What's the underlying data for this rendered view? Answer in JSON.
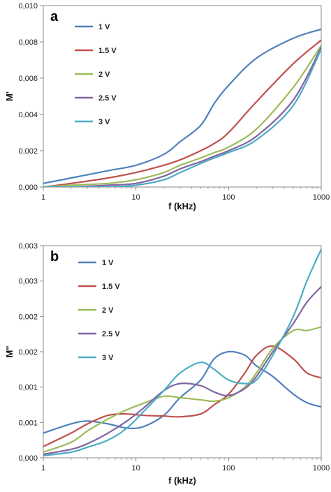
{
  "chart_data": [
    {
      "type": "line",
      "panel_label": "a",
      "xlabel": "f (kHz)",
      "ylabel": "M'",
      "x_scale": "log",
      "xlim": [
        1,
        1000
      ],
      "ylim": [
        0,
        0.01
      ],
      "x_ticks": [
        "1",
        "10",
        "100",
        "1000"
      ],
      "y_ticks": [
        "0,000",
        "0,002",
        "0,004",
        "0,006",
        "0,008",
        "0,010"
      ],
      "grid": false,
      "legend": "upper-left",
      "series": [
        {
          "name": "1 V",
          "color": "#4f81bd",
          "x": [
            1,
            2,
            5,
            10,
            20,
            30,
            50,
            70,
            100,
            200,
            500,
            1000
          ],
          "y": [
            0.0002,
            0.0005,
            0.0009,
            0.0012,
            0.0018,
            0.0025,
            0.0034,
            0.0046,
            0.0056,
            0.0071,
            0.0082,
            0.0087
          ]
        },
        {
          "name": "1.5 V",
          "color": "#c0504d",
          "x": [
            1,
            2,
            5,
            10,
            20,
            30,
            50,
            70,
            100,
            200,
            500,
            1000
          ],
          "y": [
            0.0,
            0.0002,
            0.0005,
            0.0008,
            0.0012,
            0.0015,
            0.002,
            0.0024,
            0.003,
            0.0047,
            0.0068,
            0.0081
          ]
        },
        {
          "name": "2 V",
          "color": "#9bbb59",
          "x": [
            1,
            2,
            5,
            10,
            20,
            30,
            50,
            70,
            100,
            200,
            500,
            1000
          ],
          "y": [
            0.0,
            0.0001,
            0.0002,
            0.0004,
            0.0008,
            0.0012,
            0.0016,
            0.0019,
            0.0022,
            0.0032,
            0.0055,
            0.0078
          ]
        },
        {
          "name": "2.5 V",
          "color": "#8064a2",
          "x": [
            1,
            2,
            5,
            10,
            20,
            30,
            50,
            70,
            100,
            200,
            500,
            1000
          ],
          "y": [
            0.0,
            0.0,
            0.0001,
            0.0002,
            0.0006,
            0.001,
            0.0014,
            0.0017,
            0.002,
            0.0028,
            0.0048,
            0.0077
          ]
        },
        {
          "name": "3 V",
          "color": "#4bacc6",
          "x": [
            1,
            2,
            5,
            10,
            20,
            30,
            50,
            70,
            100,
            200,
            500,
            1000
          ],
          "y": [
            0.0,
            0.0,
            0.0,
            0.0001,
            0.0004,
            0.0008,
            0.0013,
            0.0016,
            0.0019,
            0.0026,
            0.0045,
            0.0076
          ]
        }
      ]
    },
    {
      "type": "line",
      "panel_label": "b",
      "xlabel": "f (kHz)",
      "ylabel": "M''",
      "x_scale": "log",
      "xlim": [
        1,
        1000
      ],
      "ylim": [
        0,
        0.003
      ],
      "x_ticks": [
        "1",
        "10",
        "100",
        "1000"
      ],
      "y_ticks": [
        "0,000",
        "0,001",
        "0,001",
        "0,002",
        "0,002",
        "0,003",
        "0,003"
      ],
      "grid": false,
      "legend": "upper-left",
      "series": [
        {
          "name": "1 V",
          "color": "#4f81bd",
          "x": [
            1,
            2,
            3,
            5,
            8,
            12,
            20,
            30,
            50,
            70,
            100,
            150,
            200,
            300,
            500,
            700,
            1000
          ],
          "y": [
            0.00035,
            0.00048,
            0.00052,
            0.00048,
            0.00042,
            0.00044,
            0.0006,
            0.00085,
            0.0011,
            0.0014,
            0.0015,
            0.00145,
            0.0013,
            0.00115,
            0.0009,
            0.00078,
            0.00072
          ]
        },
        {
          "name": "1.5 V",
          "color": "#c0504d",
          "x": [
            1,
            2,
            3,
            5,
            8,
            12,
            20,
            30,
            50,
            70,
            100,
            150,
            200,
            300,
            500,
            700,
            1000
          ],
          "y": [
            0.00016,
            0.00035,
            0.00048,
            0.0006,
            0.00062,
            0.0006,
            0.00059,
            0.00058,
            0.00062,
            0.00075,
            0.0009,
            0.0012,
            0.00145,
            0.00158,
            0.0014,
            0.0012,
            0.00113
          ]
        },
        {
          "name": "2 V",
          "color": "#9bbb59",
          "x": [
            1,
            2,
            3,
            5,
            8,
            12,
            20,
            30,
            50,
            70,
            100,
            150,
            200,
            300,
            500,
            700,
            1000
          ],
          "y": [
            8e-05,
            0.00022,
            0.00038,
            0.00055,
            0.00068,
            0.00077,
            0.00087,
            0.00085,
            0.00082,
            0.0008,
            0.00085,
            0.001,
            0.0012,
            0.00155,
            0.0018,
            0.0018,
            0.00185
          ]
        },
        {
          "name": "2.5 V",
          "color": "#8064a2",
          "x": [
            1,
            2,
            3,
            5,
            8,
            12,
            20,
            30,
            50,
            70,
            100,
            150,
            200,
            300,
            500,
            700,
            1000
          ],
          "y": [
            5e-05,
            0.00012,
            0.0002,
            0.00035,
            0.00052,
            0.0007,
            0.00095,
            0.00105,
            0.00102,
            0.00093,
            0.00088,
            0.00098,
            0.00115,
            0.0015,
            0.0019,
            0.0022,
            0.00242
          ]
        },
        {
          "name": "3 V",
          "color": "#4bacc6",
          "x": [
            1,
            2,
            3,
            5,
            8,
            12,
            20,
            30,
            50,
            70,
            100,
            150,
            200,
            300,
            500,
            700,
            1000
          ],
          "y": [
            3e-05,
            8e-05,
            0.00015,
            0.00025,
            0.00042,
            0.00065,
            0.00095,
            0.0012,
            0.00135,
            0.00125,
            0.0011,
            0.00105,
            0.0011,
            0.00145,
            0.002,
            0.0025,
            0.00295
          ]
        }
      ]
    }
  ]
}
